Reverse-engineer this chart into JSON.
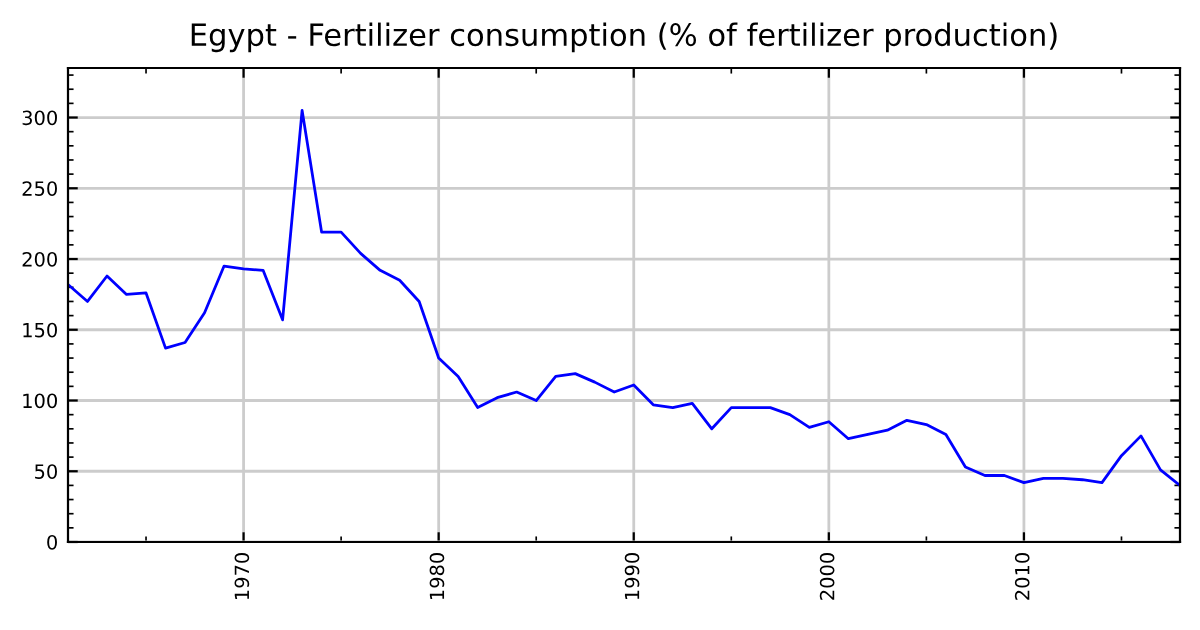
{
  "chart_data": {
    "type": "line",
    "title": "Egypt - Fertilizer consumption (% of fertilizer production)",
    "x": [
      1961,
      1962,
      1963,
      1964,
      1965,
      1966,
      1967,
      1968,
      1969,
      1970,
      1971,
      1972,
      1973,
      1974,
      1975,
      1976,
      1977,
      1978,
      1979,
      1980,
      1981,
      1982,
      1983,
      1984,
      1985,
      1986,
      1987,
      1988,
      1989,
      1990,
      1991,
      1992,
      1993,
      1994,
      1995,
      1996,
      1997,
      1998,
      1999,
      2000,
      2001,
      2002,
      2003,
      2004,
      2005,
      2006,
      2007,
      2008,
      2009,
      2010,
      2011,
      2012,
      2013,
      2014,
      2015,
      2016,
      2017,
      2018
    ],
    "series": [
      {
        "color": "#0000ff",
        "values": [
          182,
          170,
          188,
          175,
          176,
          137,
          141,
          162,
          195,
          193,
          192,
          157,
          305,
          219,
          219,
          204,
          192,
          185,
          170,
          130,
          117,
          95,
          102,
          106,
          100,
          117,
          119,
          113,
          106,
          111,
          97,
          95,
          98,
          80,
          95,
          95,
          95,
          90,
          81,
          85,
          73,
          76,
          79,
          86,
          83,
          76,
          53,
          47,
          47,
          42,
          45,
          45,
          44,
          42,
          61,
          75,
          51,
          40
        ]
      }
    ],
    "xlim": [
      1961,
      2018
    ],
    "xticks": [
      1970,
      1980,
      1990,
      2000,
      2010
    ],
    "ylim": [
      0,
      335
    ],
    "yticks": [
      0,
      50,
      100,
      150,
      200,
      250,
      300
    ],
    "grid": true,
    "marker": "none",
    "line_style": "solid"
  }
}
